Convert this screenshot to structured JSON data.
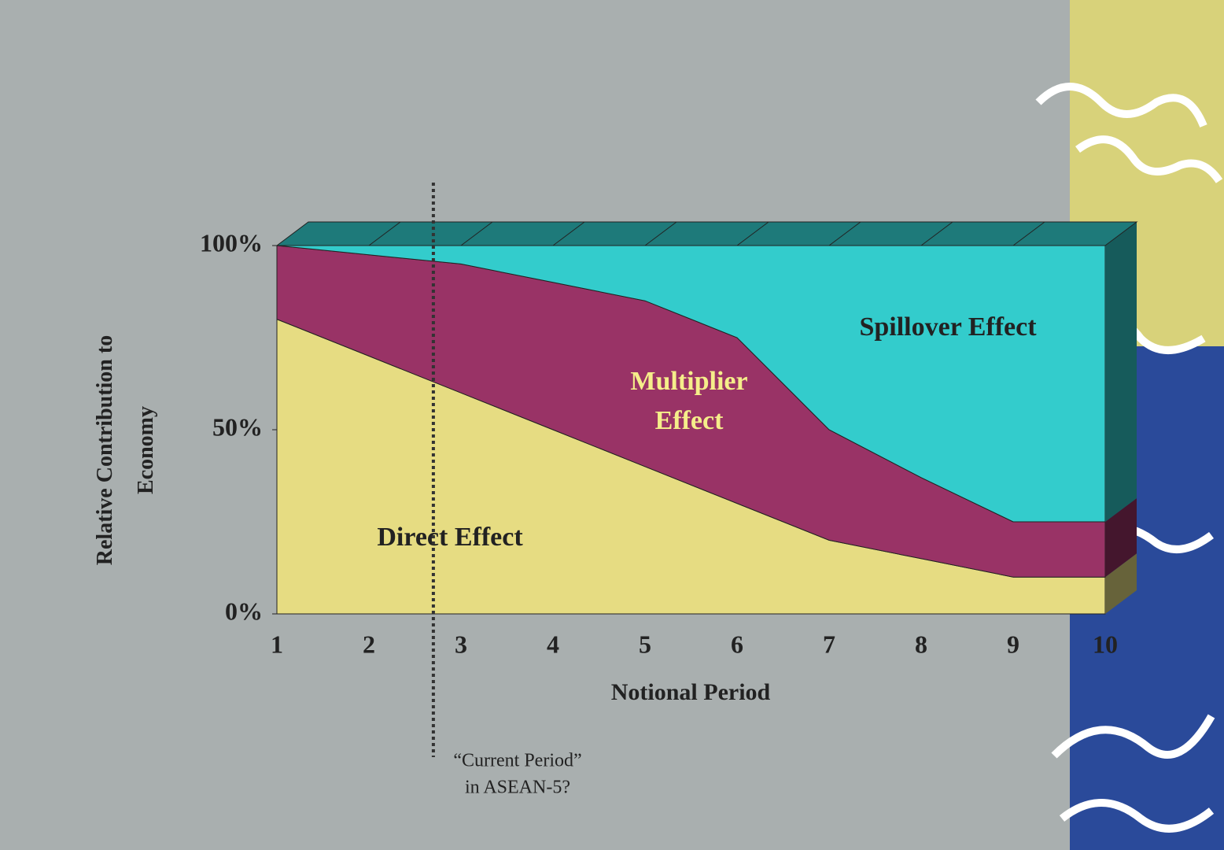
{
  "chart_data": {
    "type": "area",
    "x": [
      1,
      2,
      3,
      4,
      5,
      6,
      7,
      8,
      9,
      10
    ],
    "xlim": [
      1,
      10
    ],
    "xticks": [
      1,
      2,
      3,
      4,
      5,
      6,
      7,
      8,
      9,
      10
    ],
    "ylim": [
      0,
      100
    ],
    "yticks": [
      {
        "value": 0,
        "label": "0%"
      },
      {
        "value": 50,
        "label": "50%"
      },
      {
        "value": 100,
        "label": "100%"
      }
    ],
    "stacked": true,
    "x_label": "Notional Period",
    "y_label": "Relative Contribution to Economy",
    "series": [
      {
        "name": "Direct Effect",
        "color": "#e6dc82",
        "values": [
          80,
          70,
          60,
          50,
          40,
          30,
          20,
          15,
          10,
          10
        ]
      },
      {
        "name": "Multiplier Effect",
        "color": "#993366",
        "values": [
          20,
          27.5,
          35,
          40,
          45,
          45,
          30,
          22,
          15,
          15
        ]
      },
      {
        "name": "Spillover Effect",
        "color": "#33cccc",
        "values": [
          0,
          2.5,
          5,
          10,
          15,
          25,
          50,
          63,
          75,
          75
        ]
      }
    ],
    "annotation": {
      "x": 2.7,
      "lines": [
        "“Current Period”",
        "in ASEAN-5?"
      ]
    }
  }
}
